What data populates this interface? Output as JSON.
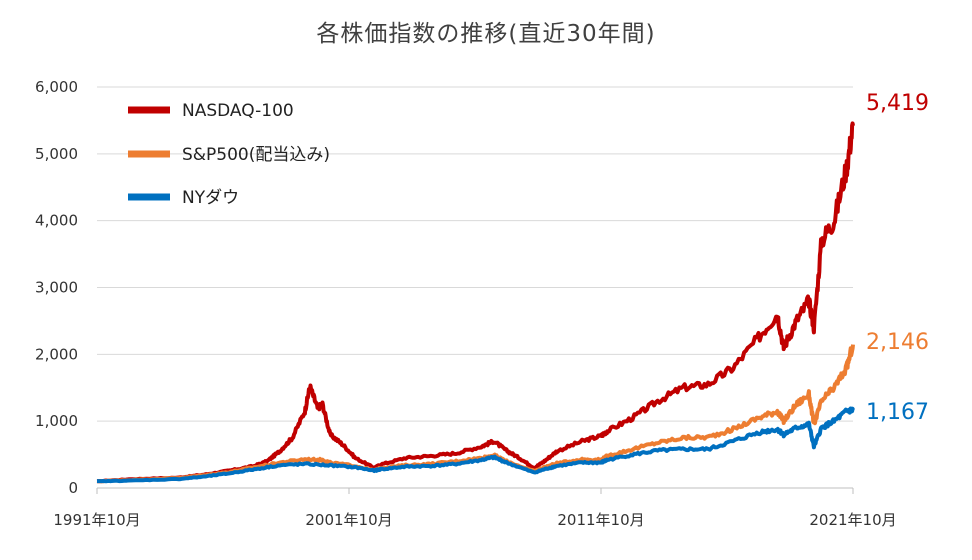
{
  "chart_data": {
    "type": "line",
    "title": "各株価指数の推移(直近30年間)",
    "xlabel": "",
    "ylabel": "",
    "x_range": [
      1991.75,
      2021.75
    ],
    "ylim": [
      0,
      6000
    ],
    "y_ticks": [
      "0",
      "1,000",
      "2,000",
      "3,000",
      "4,000",
      "5,000",
      "6,000"
    ],
    "y_tick_values": [
      0,
      1000,
      2000,
      3000,
      4000,
      5000,
      6000
    ],
    "x_ticks": [
      "1991年10月",
      "2001年10月",
      "2011年10月",
      "2021年10月"
    ],
    "x_tick_values": [
      1991.75,
      2001.75,
      2011.75,
      2021.75
    ],
    "grid": true,
    "legend": "top-left",
    "series": [
      {
        "name": "NASDAQ-100",
        "color": "#c00000",
        "end_label": "5,419",
        "x": [
          1991.75,
          1993,
          1995,
          1996,
          1997,
          1998,
          1998.5,
          1999,
          1999.5,
          2000,
          2000.2,
          2000.5,
          2000.7,
          2001,
          2001.5,
          2002,
          2002.75,
          2003,
          2004,
          2005,
          2006,
          2007,
          2007.5,
          2008,
          2008.5,
          2009.1,
          2009.5,
          2010,
          2011,
          2011.75,
          2012,
          2013,
          2014,
          2015,
          2016,
          2017,
          2018,
          2018.75,
          2019,
          2019.5,
          2020,
          2020.2,
          2020.5,
          2021,
          2021.5,
          2021.75
        ],
        "y": [
          100,
          130,
          155,
          200,
          260,
          330,
          400,
          550,
          750,
          1150,
          1520,
          1200,
          1250,
          800,
          650,
          450,
          300,
          350,
          450,
          480,
          520,
          620,
          700,
          560,
          450,
          300,
          400,
          550,
          700,
          780,
          850,
          1050,
          1300,
          1500,
          1550,
          1800,
          2250,
          2600,
          2100,
          2500,
          2800,
          2400,
          3700,
          4000,
          4800,
          5419
        ]
      },
      {
        "name": "S&P500(配当込み)",
        "color": "#ed7d31",
        "end_label": "2,146",
        "x": [
          1991.75,
          1993,
          1995,
          1996,
          1997,
          1998,
          1999,
          2000,
          2000.7,
          2001,
          2002,
          2002.75,
          2003,
          2004,
          2005,
          2006,
          2007,
          2007.5,
          2008,
          2009.1,
          2009.5,
          2010,
          2011,
          2011.75,
          2012,
          2013,
          2014,
          2015,
          2016,
          2017,
          2018,
          2018.75,
          2019,
          2019.5,
          2020,
          2020.2,
          2020.5,
          2021,
          2021.5,
          2021.75
        ],
        "y": [
          100,
          120,
          150,
          190,
          240,
          310,
          380,
          430,
          420,
          380,
          330,
          260,
          300,
          340,
          360,
          400,
          450,
          490,
          400,
          250,
          310,
          370,
          430,
          420,
          480,
          580,
          680,
          750,
          760,
          880,
          1050,
          1150,
          1000,
          1250,
          1400,
          950,
          1300,
          1500,
          1800,
          2146
        ]
      },
      {
        "name": "NYダウ",
        "color": "#0070c0",
        "end_label": "1,167",
        "x": [
          1991.75,
          1993,
          1995,
          1996,
          1997,
          1998,
          1999,
          2000,
          2001,
          2002,
          2002.75,
          2003,
          2004,
          2005,
          2006,
          2007,
          2007.5,
          2008,
          2009.1,
          2009.5,
          2010,
          2011,
          2011.75,
          2012,
          2013,
          2014,
          2015,
          2016,
          2017,
          2018,
          2018.75,
          2019,
          2019.5,
          2020,
          2020.2,
          2020.5,
          2021,
          2021.5,
          2021.75
        ],
        "y": [
          100,
          110,
          135,
          170,
          220,
          280,
          340,
          360,
          340,
          310,
          260,
          280,
          320,
          330,
          360,
          420,
          460,
          380,
          230,
          280,
          330,
          380,
          380,
          420,
          500,
          560,
          580,
          580,
          700,
          830,
          880,
          800,
          900,
          950,
          620,
          900,
          1000,
          1150,
          1167
        ]
      }
    ]
  }
}
